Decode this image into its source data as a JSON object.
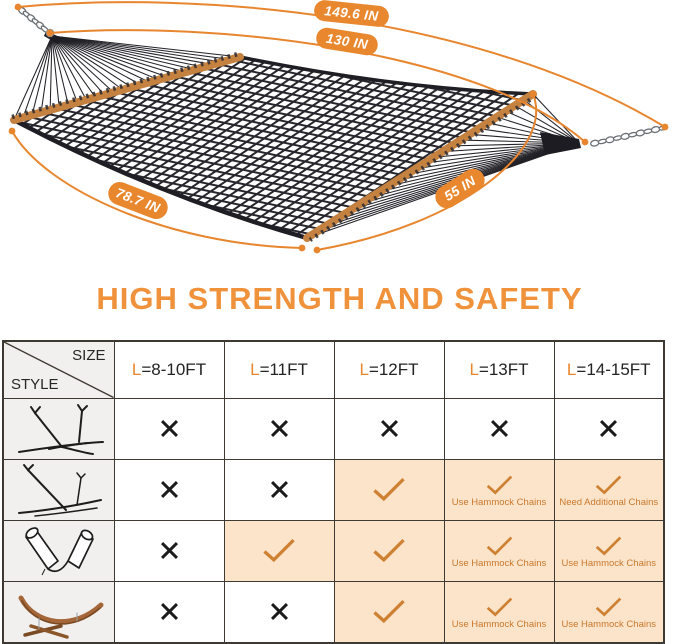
{
  "diagram": {
    "dimension_labels": {
      "overall_length": "149.6 IN",
      "hammock_length": "130 IN",
      "bed_length": "78.7 IN",
      "bed_width": "55 IN"
    }
  },
  "heading": "HIGH STRENGTH AND SAFETY",
  "colors": {
    "accent_orange": "#F0923B",
    "dimension_line_orange": "#E8862F",
    "pill_orange": "#E8872E",
    "check_orange": "#CF8133",
    "note_orange": "#C9792E",
    "highlight_cell_bg": "#FBE4CA",
    "gray_cell_bg": "#F1F0EE",
    "table_border": "#3E3933",
    "x_mark": "#1B1B1B",
    "wood_bar": "#C5813F"
  },
  "table": {
    "corner": {
      "size_label": "SIZE",
      "style_label": "STYLE"
    },
    "columns": [
      {
        "prefix": "L",
        "rest": "=8-10FT"
      },
      {
        "prefix": "L",
        "rest": "=11FT"
      },
      {
        "prefix": "L",
        "rest": "=12FT"
      },
      {
        "prefix": "L",
        "rest": "=13FT"
      },
      {
        "prefix": "L",
        "rest": "=14-15FT"
      }
    ],
    "rows": [
      {
        "icon": "steel-stand-a-icon",
        "cells": [
          {
            "mark": "x",
            "note": ""
          },
          {
            "mark": "x",
            "note": ""
          },
          {
            "mark": "x",
            "note": ""
          },
          {
            "mark": "x",
            "note": ""
          },
          {
            "mark": "x",
            "note": ""
          }
        ]
      },
      {
        "icon": "steel-stand-b-icon",
        "cells": [
          {
            "mark": "x",
            "note": ""
          },
          {
            "mark": "x",
            "note": ""
          },
          {
            "mark": "check",
            "note": ""
          },
          {
            "mark": "check",
            "note": "Use Hammock Chains"
          },
          {
            "mark": "check",
            "note": "Need Additional Chains"
          }
        ]
      },
      {
        "icon": "chair-stand-icon",
        "cells": [
          {
            "mark": "x",
            "note": ""
          },
          {
            "mark": "check",
            "note": ""
          },
          {
            "mark": "check",
            "note": ""
          },
          {
            "mark": "check",
            "note": "Use Hammock Chains"
          },
          {
            "mark": "check",
            "note": "Use Hammock Chains"
          }
        ]
      },
      {
        "icon": "wooden-arc-stand-icon",
        "cells": [
          {
            "mark": "x",
            "note": ""
          },
          {
            "mark": "x",
            "note": ""
          },
          {
            "mark": "check",
            "note": ""
          },
          {
            "mark": "check",
            "note": "Use Hammock Chains"
          },
          {
            "mark": "check",
            "note": "Use Hammock Chains"
          }
        ]
      }
    ]
  }
}
